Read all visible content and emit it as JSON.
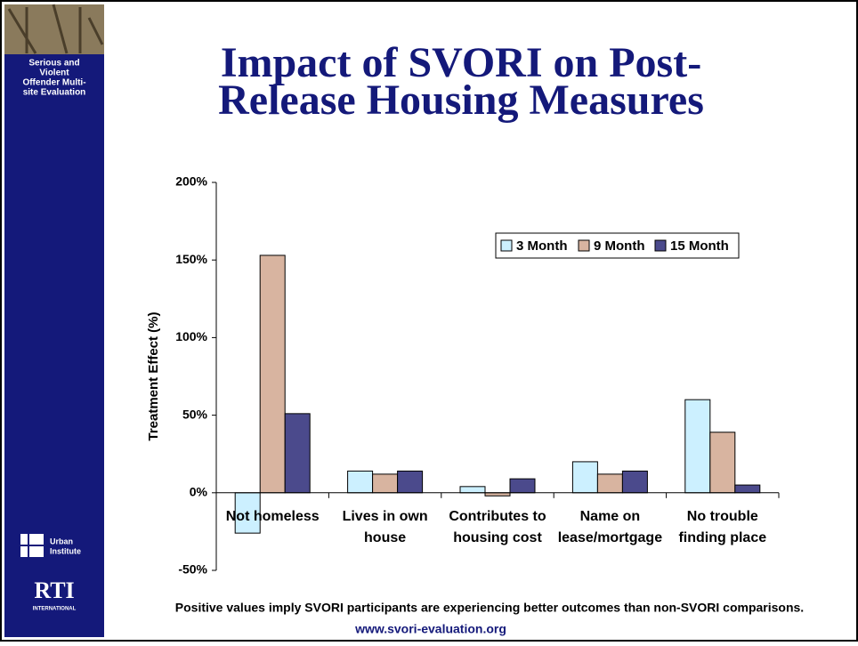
{
  "sidebar": {
    "lines": [
      "Serious and",
      "Violent",
      "Offender Multi-",
      "site Evaluation"
    ],
    "urban": [
      "Urban",
      "Institute"
    ],
    "rti": "RTI",
    "rti_sub": "INTERNATIONAL"
  },
  "chart_data": {
    "type": "bar",
    "title": [
      "Impact of SVORI on Post-",
      "Release Housing Measures"
    ],
    "y_label": "Treatment Effect (%)",
    "categories": [
      [
        "Not homeless"
      ],
      [
        "Lives in own",
        "house"
      ],
      [
        "Contributes to",
        "housing cost"
      ],
      [
        "Name on",
        "lease/mortgage"
      ],
      [
        "No trouble",
        "finding place"
      ]
    ],
    "series": [
      {
        "name": "3 Month",
        "color": "#ccf0ff",
        "values": [
          -26,
          14,
          4,
          20,
          60
        ]
      },
      {
        "name": "9 Month",
        "color": "#d8b4a0",
        "values": [
          153,
          12,
          -2,
          12,
          39
        ]
      },
      {
        "name": "15 Month",
        "color": "#4b4a8c",
        "values": [
          51,
          14,
          9,
          14,
          5
        ]
      }
    ],
    "ylim": [
      -50,
      200
    ],
    "yticks": [
      {
        "value": -50,
        "label": "-50%"
      },
      {
        "value": 0,
        "label": "0%"
      },
      {
        "value": 50,
        "label": "50%"
      },
      {
        "value": 100,
        "label": "100%"
      },
      {
        "value": 150,
        "label": "150%"
      },
      {
        "value": 200,
        "label": "200%"
      }
    ],
    "legend": "top-right"
  },
  "footer": {
    "note": "Positive values imply SVORI participants are experiencing better outcomes than non-SVORI comparisons.",
    "url": "www.svori-evaluation.org"
  }
}
